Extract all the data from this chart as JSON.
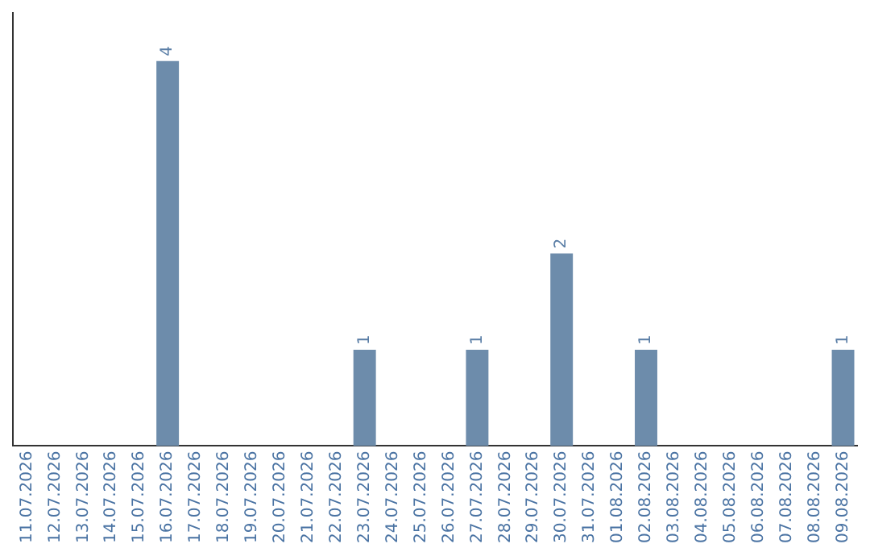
{
  "chart_data": {
    "type": "bar",
    "categories": [
      "11.07.2026",
      "12.07.2026",
      "13.07.2026",
      "14.07.2026",
      "15.07.2026",
      "16.07.2026",
      "17.07.2026",
      "18.07.2026",
      "19.07.2026",
      "20.07.2026",
      "21.07.2026",
      "22.07.2026",
      "23.07.2026",
      "24.07.2026",
      "25.07.2026",
      "26.07.2026",
      "27.07.2026",
      "28.07.2026",
      "29.07.2026",
      "30.07.2026",
      "31.07.2026",
      "01.08.2026",
      "02.08.2026",
      "03.08.2026",
      "04.08.2026",
      "05.08.2026",
      "06.08.2026",
      "07.08.2026",
      "08.08.2026",
      "09.08.2026"
    ],
    "values": [
      0,
      0,
      0,
      0,
      0,
      4,
      0,
      0,
      0,
      0,
      0,
      0,
      1,
      0,
      0,
      0,
      1,
      0,
      0,
      2,
      0,
      0,
      1,
      0,
      0,
      0,
      0,
      0,
      0,
      1
    ],
    "value_labels": [
      null,
      null,
      null,
      null,
      null,
      "4",
      null,
      null,
      null,
      null,
      null,
      null,
      "1",
      null,
      null,
      null,
      "1",
      null,
      null,
      "2",
      null,
      null,
      "1",
      null,
      null,
      null,
      null,
      null,
      null,
      "1"
    ],
    "color": "#6d8cab"
  }
}
